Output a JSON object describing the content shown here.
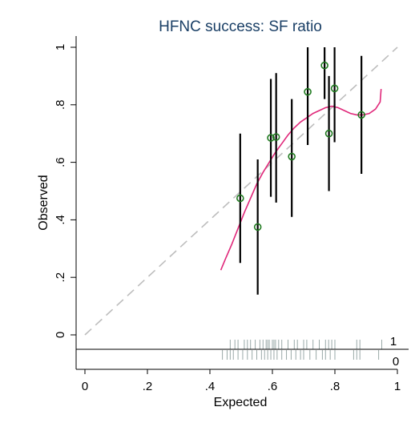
{
  "chart_data": {
    "type": "scatter",
    "title": "HFNC success: SF ratio",
    "xlabel": "Expected",
    "ylabel": "Observed",
    "xlim": [
      0,
      1
    ],
    "ylim": [
      0,
      1
    ],
    "x_ticks": [
      0,
      0.2,
      0.4,
      0.6,
      0.8,
      1
    ],
    "x_tick_labels": [
      "0",
      ".2",
      ".4",
      ".6",
      ".8",
      "1"
    ],
    "y_ticks": [
      0,
      0.2,
      0.4,
      0.6,
      0.8,
      1
    ],
    "y_tick_labels": [
      "0",
      ".2",
      ".4",
      ".6",
      ".8",
      "1"
    ],
    "grid": false,
    "reference_line": {
      "style": "dashed",
      "color": "#bdbdbd",
      "from": [
        0,
        0
      ],
      "to": [
        1,
        1
      ]
    },
    "series": [
      {
        "kind": "points-with-ci",
        "color": "#1f7a1f",
        "ci_color": "#000000",
        "points": [
          {
            "x": 0.497,
            "y": 0.475,
            "lower": 0.25,
            "upper": 0.7
          },
          {
            "x": 0.553,
            "y": 0.375,
            "lower": 0.14,
            "upper": 0.61
          },
          {
            "x": 0.595,
            "y": 0.685,
            "lower": 0.48,
            "upper": 0.89
          },
          {
            "x": 0.612,
            "y": 0.688,
            "lower": 0.46,
            "upper": 0.91
          },
          {
            "x": 0.662,
            "y": 0.62,
            "lower": 0.41,
            "upper": 0.82
          },
          {
            "x": 0.713,
            "y": 0.845,
            "lower": 0.66,
            "upper": 1.0
          },
          {
            "x": 0.767,
            "y": 0.937,
            "lower": 0.82,
            "upper": 1.0
          },
          {
            "x": 0.781,
            "y": 0.7,
            "lower": 0.5,
            "upper": 0.9
          },
          {
            "x": 0.799,
            "y": 0.857,
            "lower": 0.67,
            "upper": 1.0
          },
          {
            "x": 0.885,
            "y": 0.765,
            "lower": 0.56,
            "upper": 0.97
          }
        ]
      },
      {
        "kind": "smooth-line",
        "color": "#e0287a",
        "points": [
          [
            0.435,
            0.225
          ],
          [
            0.45,
            0.265
          ],
          [
            0.47,
            0.315
          ],
          [
            0.49,
            0.37
          ],
          [
            0.51,
            0.425
          ],
          [
            0.53,
            0.475
          ],
          [
            0.55,
            0.525
          ],
          [
            0.57,
            0.565
          ],
          [
            0.59,
            0.6
          ],
          [
            0.61,
            0.635
          ],
          [
            0.63,
            0.665
          ],
          [
            0.65,
            0.695
          ],
          [
            0.67,
            0.72
          ],
          [
            0.69,
            0.74
          ],
          [
            0.71,
            0.755
          ],
          [
            0.73,
            0.77
          ],
          [
            0.75,
            0.78
          ],
          [
            0.77,
            0.79
          ],
          [
            0.79,
            0.795
          ],
          [
            0.81,
            0.79
          ],
          [
            0.83,
            0.78
          ],
          [
            0.85,
            0.77
          ],
          [
            0.87,
            0.765
          ],
          [
            0.89,
            0.765
          ],
          [
            0.91,
            0.77
          ],
          [
            0.93,
            0.785
          ],
          [
            0.945,
            0.81
          ],
          [
            0.948,
            0.855
          ]
        ]
      }
    ],
    "rug": {
      "labels": [
        "1",
        "0"
      ],
      "outcome_1_x": [
        0.465,
        0.48,
        0.49,
        0.51,
        0.52,
        0.53,
        0.545,
        0.56,
        0.57,
        0.58,
        0.585,
        0.59,
        0.6,
        0.605,
        0.61,
        0.62,
        0.63,
        0.65,
        0.67,
        0.68,
        0.7,
        0.71,
        0.73,
        0.75,
        0.77,
        0.78,
        0.79,
        0.8,
        0.87,
        0.88,
        0.95
      ],
      "outcome_0_x": [
        0.44,
        0.455,
        0.465,
        0.475,
        0.49,
        0.505,
        0.52,
        0.535,
        0.55,
        0.565,
        0.575,
        0.585,
        0.595,
        0.605,
        0.615,
        0.63,
        0.645,
        0.66,
        0.675,
        0.69,
        0.7,
        0.72,
        0.74,
        0.76,
        0.77,
        0.785,
        0.8,
        0.86,
        0.87,
        0.88,
        0.94
      ]
    }
  }
}
